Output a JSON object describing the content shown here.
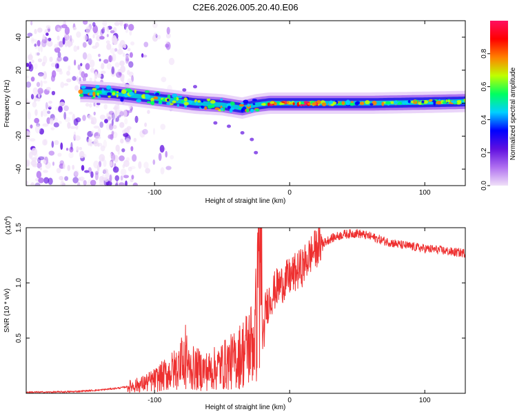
{
  "title": "C2E6.2026.005.20.40.E06",
  "chart_data": [
    {
      "type": "heatmap",
      "panel": "spectrogram",
      "xlabel": "Height of straight line (km)",
      "ylabel": "Frequency (Hz)",
      "xlim": [
        -195,
        130
      ],
      "ylim": [
        -50,
        50
      ],
      "xticks": [
        -100,
        0,
        100
      ],
      "xtick_labels": [
        "-100",
        "0",
        "100"
      ],
      "yticks": [
        -40,
        -20,
        0,
        20,
        40
      ],
      "ytick_labels": [
        "-40",
        "-20",
        "0",
        "20",
        "40"
      ],
      "colorbar": {
        "label": "Normalized spectral amplitude",
        "range": [
          0,
          1
        ],
        "ticks": [
          0.0,
          0.2,
          0.4,
          0.6,
          0.8
        ],
        "tick_labels": [
          "0.0",
          "0.2",
          "0.4",
          "0.6",
          "0.8"
        ],
        "colors": [
          "#f0e0f8",
          "#b070f0",
          "#6010e0",
          "#0000ff",
          "#00d0ff",
          "#00ff60",
          "#c0ff00",
          "#ff8000",
          "#ff0000",
          "#ff1060"
        ]
      },
      "ridge": [
        {
          "x": -150,
          "y": 7
        },
        {
          "x": -130,
          "y": 6
        },
        {
          "x": -110,
          "y": 4
        },
        {
          "x": -90,
          "y": 2
        },
        {
          "x": -70,
          "y": 0
        },
        {
          "x": -50,
          "y": -1
        },
        {
          "x": -35,
          "y": -3
        },
        {
          "x": -25,
          "y": -1
        },
        {
          "x": -15,
          "y": 0
        },
        {
          "x": 0,
          "y": 0
        },
        {
          "x": 20,
          "y": 0
        },
        {
          "x": 60,
          "y": 0
        },
        {
          "x": 100,
          "y": 0.5
        },
        {
          "x": 130,
          "y": 1
        }
      ]
    },
    {
      "type": "line",
      "panel": "snr",
      "xlabel": "Height of straight line (km)",
      "ylabel": "SNR (10 * v/v)",
      "y_multiplier": "(x10",
      "y_multiplier_exp": "4",
      "y_multiplier_close": ")",
      "xlim": [
        -195,
        130
      ],
      "ylim": [
        0,
        1.5
      ],
      "xticks": [
        -100,
        0,
        100
      ],
      "xtick_labels": [
        "-100",
        "0",
        "100"
      ],
      "yticks": [
        0.5,
        1.0,
        1.5
      ],
      "ytick_labels": [
        "0.5",
        "1.0",
        "1.5"
      ],
      "line_color": "#ee3030",
      "series": [
        {
          "name": "SNR",
          "x": [
            -195,
            -180,
            -160,
            -140,
            -125,
            -110,
            -100,
            -90,
            -80,
            -70,
            -60,
            -50,
            -40,
            -32,
            -26,
            -22,
            -20,
            -18,
            -15,
            -10,
            -5,
            0,
            5,
            10,
            15,
            20,
            30,
            40,
            50,
            60,
            70,
            80,
            90,
            100,
            110,
            120,
            130
          ],
          "y": [
            0.01,
            0.01,
            0.015,
            0.03,
            0.05,
            0.08,
            0.12,
            0.18,
            0.25,
            0.22,
            0.2,
            0.25,
            0.3,
            0.4,
            0.5,
            1.0,
            0.35,
            0.75,
            0.85,
            0.95,
            1.0,
            1.05,
            1.1,
            1.15,
            1.25,
            1.32,
            1.4,
            1.44,
            1.45,
            1.42,
            1.38,
            1.35,
            1.33,
            1.31,
            1.3,
            1.28,
            1.27
          ]
        }
      ]
    }
  ]
}
